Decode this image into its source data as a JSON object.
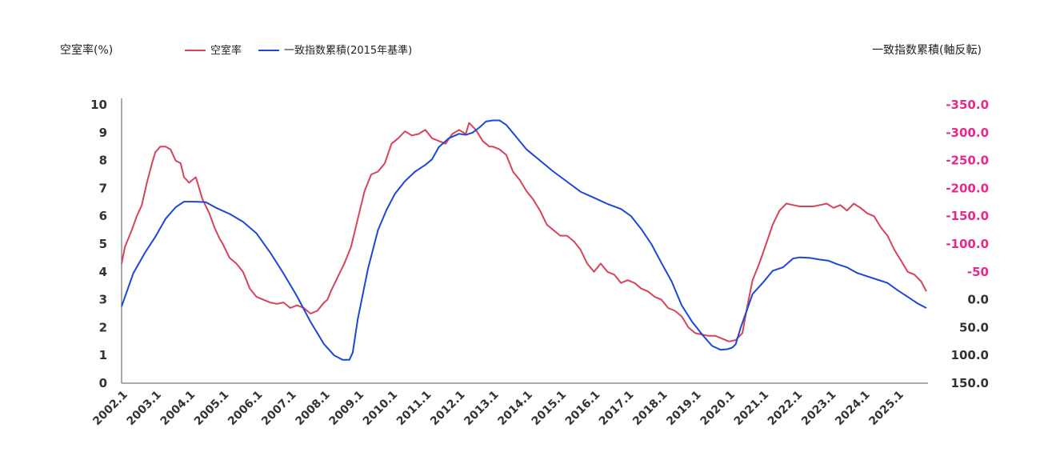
{
  "chart_data": {
    "type": "line",
    "ylabel_left": "空室率(%)",
    "ylabel_right": "一致指数累積(軸反転)",
    "ylim_left": [
      0,
      10
    ],
    "ylim_right": [
      -350,
      150
    ],
    "right_axis_inverted": true,
    "left_ticks": [
      "0",
      "1",
      "2",
      "3",
      "4",
      "5",
      "6",
      "7",
      "8",
      "9",
      "10"
    ],
    "right_ticks": [
      "-350.0",
      "-300.0",
      "-250.0",
      "-200.0",
      "-150.0",
      "-100.0",
      "-50",
      "0.0",
      "50.0",
      "100.0",
      "150.0"
    ],
    "right_tick_values": [
      -350,
      -300,
      -250,
      -200,
      -150,
      -100,
      -50,
      0,
      50,
      100,
      150
    ],
    "right_tick_colors": [
      "#e8298a",
      "#e8298a",
      "#e8298a",
      "#e8298a",
      "#e8298a",
      "#e8298a",
      "#e8298a",
      "#333333",
      "#333333",
      "#333333",
      "#333333"
    ],
    "xlim": [
      2002.0,
      2025.9
    ],
    "x_ticks": [
      "2002.1",
      "2003.1",
      "2004.1",
      "2005.1",
      "2006.1",
      "2007.1",
      "2008.1",
      "2009.1",
      "2010.1",
      "2011.1",
      "2012.1",
      "2013.1",
      "2014.1",
      "2015.1",
      "2016.1",
      "2017.1",
      "2018.1",
      "2019.1",
      "2020.1",
      "2021.1",
      "2022.1",
      "2023.1",
      "2024.1",
      "2025.1"
    ],
    "grid": false,
    "legend_position": "top-left",
    "series": [
      {
        "name": "空室率",
        "axis": "left",
        "color": "#d7435a",
        "x": [
          2002.0,
          2002.1,
          2002.3,
          2002.45,
          2002.6,
          2002.75,
          2002.9,
          2003.0,
          2003.15,
          2003.3,
          2003.45,
          2003.6,
          2003.75,
          2003.85,
          2004.0,
          2004.2,
          2004.3,
          2004.4,
          2004.6,
          2004.75,
          2004.9,
          2005.0,
          2005.2,
          2005.4,
          2005.6,
          2005.8,
          2006.0,
          2006.2,
          2006.4,
          2006.6,
          2006.8,
          2007.0,
          2007.2,
          2007.4,
          2007.6,
          2007.8,
          2008.0,
          2008.1,
          2008.2,
          2008.4,
          2008.6,
          2008.8,
          2009.0,
          2009.2,
          2009.4,
          2009.6,
          2009.8,
          2010.0,
          2010.2,
          2010.4,
          2010.6,
          2010.8,
          2011.0,
          2011.2,
          2011.4,
          2011.6,
          2011.8,
          2012.0,
          2012.2,
          2012.3,
          2012.5,
          2012.7,
          2012.9,
          2013.0,
          2013.2,
          2013.4,
          2013.6,
          2013.8,
          2014.0,
          2014.2,
          2014.4,
          2014.6,
          2014.8,
          2015.0,
          2015.2,
          2015.4,
          2015.6,
          2015.8,
          2016.0,
          2016.2,
          2016.4,
          2016.6,
          2016.8,
          2017.0,
          2017.2,
          2017.4,
          2017.6,
          2017.8,
          2018.0,
          2018.2,
          2018.4,
          2018.6,
          2018.8,
          2019.0,
          2019.2,
          2019.4,
          2019.6,
          2019.8,
          2020.0,
          2020.2,
          2020.4,
          2020.55,
          2020.7,
          2020.9,
          2021.1,
          2021.3,
          2021.5,
          2021.7,
          2021.9,
          2022.1,
          2022.3,
          2022.5,
          2022.7,
          2022.9,
          2023.1,
          2023.3,
          2023.5,
          2023.7,
          2023.9,
          2024.1,
          2024.3,
          2024.5,
          2024.7,
          2024.9,
          2025.1,
          2025.3,
          2025.5,
          2025.7,
          2025.85
        ],
        "values": [
          4.3,
          4.9,
          5.5,
          6.0,
          6.4,
          7.2,
          7.9,
          8.3,
          8.5,
          8.5,
          8.4,
          8.0,
          7.9,
          7.4,
          7.2,
          7.4,
          7.0,
          6.6,
          6.1,
          5.6,
          5.2,
          5.0,
          4.5,
          4.3,
          4.0,
          3.4,
          3.1,
          3.0,
          2.9,
          2.85,
          2.9,
          2.7,
          2.8,
          2.7,
          2.5,
          2.6,
          2.9,
          3.0,
          3.3,
          3.8,
          4.3,
          4.9,
          5.9,
          6.9,
          7.5,
          7.6,
          7.9,
          8.6,
          8.8,
          9.05,
          8.9,
          8.95,
          9.1,
          8.8,
          8.7,
          8.6,
          8.95,
          9.1,
          8.95,
          9.35,
          9.1,
          8.7,
          8.5,
          8.5,
          8.4,
          8.2,
          7.6,
          7.3,
          6.9,
          6.6,
          6.2,
          5.7,
          5.5,
          5.3,
          5.3,
          5.1,
          4.8,
          4.3,
          4.0,
          4.3,
          4.0,
          3.9,
          3.6,
          3.7,
          3.6,
          3.4,
          3.3,
          3.1,
          3.0,
          2.7,
          2.6,
          2.4,
          2.0,
          1.8,
          1.75,
          1.7,
          1.7,
          1.6,
          1.5,
          1.55,
          1.8,
          2.8,
          3.7,
          4.3,
          5.0,
          5.7,
          6.2,
          6.45,
          6.4,
          6.35,
          6.35,
          6.35,
          6.4,
          6.45,
          6.3,
          6.4,
          6.2,
          6.45,
          6.3,
          6.1,
          6.0,
          5.6,
          5.3,
          4.8,
          4.4,
          4.0,
          3.9,
          3.65,
          3.3
        ]
      },
      {
        "name": "一致指数累積(2015年基準)",
        "axis": "right",
        "color": "#1c47d8",
        "x": [
          2002.0,
          2002.35,
          2002.7,
          2003.0,
          2003.3,
          2003.6,
          2003.85,
          2004.2,
          2004.5,
          2004.8,
          2005.2,
          2005.6,
          2006.0,
          2006.4,
          2006.8,
          2007.2,
          2007.6,
          2008.0,
          2008.3,
          2008.55,
          2008.75,
          2008.85,
          2009.0,
          2009.3,
          2009.6,
          2009.85,
          2010.1,
          2010.4,
          2010.7,
          2011.0,
          2011.2,
          2011.4,
          2011.7,
          2012.0,
          2012.2,
          2012.4,
          2012.6,
          2012.8,
          2013.0,
          2013.2,
          2013.4,
          2013.7,
          2014.0,
          2014.4,
          2014.8,
          2015.2,
          2015.6,
          2016.0,
          2016.4,
          2016.8,
          2017.1,
          2017.4,
          2017.7,
          2018.0,
          2018.3,
          2018.6,
          2018.9,
          2019.2,
          2019.5,
          2019.75,
          2019.95,
          2020.1,
          2020.2,
          2020.35,
          2020.7,
          2021.0,
          2021.3,
          2021.6,
          2021.9,
          2022.1,
          2022.4,
          2022.7,
          2022.95,
          2023.2,
          2023.5,
          2023.8,
          2024.1,
          2024.4,
          2024.7,
          2025.0,
          2025.3,
          2025.6,
          2025.85
        ],
        "values": [
          12,
          -48,
          -85,
          -113,
          -145,
          -166,
          -176,
          -176,
          -175,
          -165,
          -154,
          -140,
          -119,
          -85,
          -47,
          -6,
          40,
          80,
          100,
          108,
          108,
          95,
          35,
          -55,
          -125,
          -161,
          -190,
          -213,
          -230,
          -242,
          -252,
          -274,
          -290,
          -298,
          -296,
          -300,
          -309,
          -320,
          -322,
          -322,
          -314,
          -292,
          -270,
          -250,
          -230,
          -212,
          -194,
          -183,
          -172,
          -163,
          -150,
          -127,
          -100,
          -66,
          -33,
          10,
          39,
          62,
          83,
          90,
          89,
          86,
          80,
          50,
          -10,
          -30,
          -52,
          -58,
          -74,
          -76,
          -75,
          -72,
          -70,
          -64,
          -58,
          -48,
          -42,
          -36,
          -30,
          -17,
          -5,
          7,
          15
        ]
      }
    ]
  }
}
